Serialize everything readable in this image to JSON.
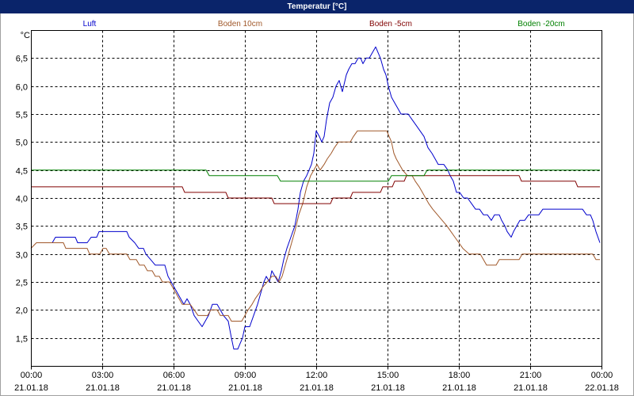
{
  "colors": {
    "title_bar": "#0a246a",
    "title_text": "#ffffff"
  },
  "chart_data": {
    "type": "line",
    "title": "Temperatur [°C]",
    "xlabel": "",
    "ylabel": "°C",
    "ylim": [
      1.0,
      7.0
    ],
    "grid": true,
    "legend": "top",
    "x_ticks": [
      {
        "time": "00:00",
        "date": "21.01.18"
      },
      {
        "time": "03:00",
        "date": "21.01.18"
      },
      {
        "time": "06:00",
        "date": "21.01.18"
      },
      {
        "time": "09:00",
        "date": "21.01.18"
      },
      {
        "time": "12:00",
        "date": "21.01.18"
      },
      {
        "time": "15:00",
        "date": "21.01.18"
      },
      {
        "time": "18:00",
        "date": "21.01.18"
      },
      {
        "time": "21:00",
        "date": "21.01.18"
      },
      {
        "time": "00:00",
        "date": "22.01.18"
      }
    ],
    "y_ticks": [
      {
        "value": 1.5,
        "label": "1,5"
      },
      {
        "value": 2.0,
        "label": "2,0"
      },
      {
        "value": 2.5,
        "label": "2,5"
      },
      {
        "value": 3.0,
        "label": "3,0"
      },
      {
        "value": 3.5,
        "label": "3,5"
      },
      {
        "value": 4.0,
        "label": "4,0"
      },
      {
        "value": 4.5,
        "label": "4,5"
      },
      {
        "value": 5.0,
        "label": "5,0"
      },
      {
        "value": 5.5,
        "label": "5,5"
      },
      {
        "value": 6.0,
        "label": "6,0"
      },
      {
        "value": 6.5,
        "label": "6,5"
      }
    ],
    "series": [
      {
        "name": "Luft",
        "color": "#0000cc",
        "points": [
          [
            "00:54",
            3.2
          ],
          [
            "01:02",
            3.3
          ],
          [
            "01:52",
            3.3
          ],
          [
            "01:58",
            3.2
          ],
          [
            "02:22",
            3.2
          ],
          [
            "02:32",
            3.3
          ],
          [
            "02:46",
            3.3
          ],
          [
            "02:52",
            3.4
          ],
          [
            "04:02",
            3.4
          ],
          [
            "04:08",
            3.3
          ],
          [
            "04:22",
            3.2
          ],
          [
            "04:32",
            3.1
          ],
          [
            "04:44",
            3.1
          ],
          [
            "04:50",
            3.0
          ],
          [
            "05:02",
            2.9
          ],
          [
            "05:14",
            2.8
          ],
          [
            "05:38",
            2.8
          ],
          [
            "05:46",
            2.6
          ],
          [
            "05:54",
            2.5
          ],
          [
            "06:02",
            2.4
          ],
          [
            "06:10",
            2.3
          ],
          [
            "06:18",
            2.2
          ],
          [
            "06:26",
            2.1
          ],
          [
            "06:34",
            2.2
          ],
          [
            "06:42",
            2.1
          ],
          [
            "06:52",
            1.9
          ],
          [
            "07:02",
            1.8
          ],
          [
            "07:12",
            1.7
          ],
          [
            "07:20",
            1.8
          ],
          [
            "07:28",
            1.9
          ],
          [
            "07:38",
            2.1
          ],
          [
            "07:50",
            2.1
          ],
          [
            "07:58",
            2.0
          ],
          [
            "08:06",
            1.9
          ],
          [
            "08:18",
            1.8
          ],
          [
            "08:26",
            1.5
          ],
          [
            "08:32",
            1.3
          ],
          [
            "08:42",
            1.3
          ],
          [
            "08:48",
            1.4
          ],
          [
            "08:54",
            1.5
          ],
          [
            "09:00",
            1.7
          ],
          [
            "09:12",
            1.7
          ],
          [
            "09:22",
            1.9
          ],
          [
            "09:32",
            2.1
          ],
          [
            "09:40",
            2.3
          ],
          [
            "09:48",
            2.5
          ],
          [
            "09:54",
            2.6
          ],
          [
            "10:02",
            2.5
          ],
          [
            "10:08",
            2.7
          ],
          [
            "10:16",
            2.6
          ],
          [
            "10:24",
            2.5
          ],
          [
            "10:32",
            2.7
          ],
          [
            "10:38",
            2.9
          ],
          [
            "10:46",
            3.1
          ],
          [
            "10:56",
            3.3
          ],
          [
            "11:06",
            3.5
          ],
          [
            "11:14",
            3.8
          ],
          [
            "11:20",
            4.1
          ],
          [
            "11:28",
            4.3
          ],
          [
            "11:36",
            4.4
          ],
          [
            "11:48",
            4.6
          ],
          [
            "11:54",
            4.8
          ],
          [
            "12:00",
            5.2
          ],
          [
            "12:08",
            5.1
          ],
          [
            "12:14",
            5.0
          ],
          [
            "12:20",
            5.1
          ],
          [
            "12:26",
            5.4
          ],
          [
            "12:34",
            5.7
          ],
          [
            "12:42",
            5.8
          ],
          [
            "12:50",
            6.0
          ],
          [
            "12:58",
            6.1
          ],
          [
            "13:06",
            5.9
          ],
          [
            "13:16",
            6.2
          ],
          [
            "13:22",
            6.3
          ],
          [
            "13:30",
            6.4
          ],
          [
            "13:38",
            6.4
          ],
          [
            "13:46",
            6.5
          ],
          [
            "13:52",
            6.5
          ],
          [
            "13:58",
            6.4
          ],
          [
            "14:06",
            6.5
          ],
          [
            "14:14",
            6.5
          ],
          [
            "14:22",
            6.6
          ],
          [
            "14:30",
            6.7
          ],
          [
            "14:36",
            6.6
          ],
          [
            "14:42",
            6.5
          ],
          [
            "14:50",
            6.3
          ],
          [
            "14:56",
            6.2
          ],
          [
            "15:02",
            6.0
          ],
          [
            "15:10",
            5.8
          ],
          [
            "15:18",
            5.7
          ],
          [
            "15:26",
            5.6
          ],
          [
            "15:34",
            5.5
          ],
          [
            "15:52",
            5.5
          ],
          [
            "16:02",
            5.4
          ],
          [
            "16:12",
            5.3
          ],
          [
            "16:22",
            5.2
          ],
          [
            "16:32",
            5.1
          ],
          [
            "16:42",
            4.9
          ],
          [
            "16:52",
            4.8
          ],
          [
            "17:00",
            4.7
          ],
          [
            "17:08",
            4.6
          ],
          [
            "17:22",
            4.6
          ],
          [
            "17:32",
            4.5
          ],
          [
            "17:38",
            4.4
          ],
          [
            "17:46",
            4.3
          ],
          [
            "17:54",
            4.1
          ],
          [
            "18:02",
            4.1
          ],
          [
            "18:12",
            4.0
          ],
          [
            "18:22",
            4.0
          ],
          [
            "18:32",
            3.9
          ],
          [
            "18:42",
            3.8
          ],
          [
            "18:52",
            3.8
          ],
          [
            "19:02",
            3.7
          ],
          [
            "19:12",
            3.7
          ],
          [
            "19:22",
            3.6
          ],
          [
            "19:30",
            3.7
          ],
          [
            "19:42",
            3.7
          ],
          [
            "19:48",
            3.6
          ],
          [
            "19:56",
            3.5
          ],
          [
            "20:02",
            3.4
          ],
          [
            "20:12",
            3.3
          ],
          [
            "20:18",
            3.4
          ],
          [
            "20:26",
            3.5
          ],
          [
            "20:34",
            3.6
          ],
          [
            "20:46",
            3.6
          ],
          [
            "20:56",
            3.7
          ],
          [
            "21:22",
            3.7
          ],
          [
            "21:32",
            3.8
          ],
          [
            "23:12",
            3.8
          ],
          [
            "23:22",
            3.7
          ],
          [
            "23:32",
            3.7
          ],
          [
            "23:38",
            3.6
          ],
          [
            "23:46",
            3.4
          ],
          [
            "23:56",
            3.2
          ]
        ]
      },
      {
        "name": "Boden 10cm",
        "color": "#a0582a",
        "points": [
          [
            "00:00",
            3.1
          ],
          [
            "00:14",
            3.2
          ],
          [
            "01:22",
            3.2
          ],
          [
            "01:28",
            3.1
          ],
          [
            "02:22",
            3.1
          ],
          [
            "02:28",
            3.0
          ],
          [
            "02:54",
            3.0
          ],
          [
            "03:02",
            3.1
          ],
          [
            "03:10",
            3.1
          ],
          [
            "03:18",
            3.0
          ],
          [
            "04:02",
            3.0
          ],
          [
            "04:10",
            2.9
          ],
          [
            "04:26",
            2.9
          ],
          [
            "04:34",
            2.8
          ],
          [
            "04:46",
            2.8
          ],
          [
            "04:54",
            2.7
          ],
          [
            "05:06",
            2.7
          ],
          [
            "05:14",
            2.6
          ],
          [
            "05:24",
            2.6
          ],
          [
            "05:32",
            2.5
          ],
          [
            "05:50",
            2.5
          ],
          [
            "05:58",
            2.4
          ],
          [
            "06:06",
            2.3
          ],
          [
            "06:14",
            2.2
          ],
          [
            "06:22",
            2.1
          ],
          [
            "06:42",
            2.1
          ],
          [
            "06:52",
            2.0
          ],
          [
            "07:02",
            1.9
          ],
          [
            "07:26",
            1.9
          ],
          [
            "07:34",
            2.0
          ],
          [
            "07:50",
            2.0
          ],
          [
            "07:58",
            1.9
          ],
          [
            "08:18",
            1.9
          ],
          [
            "08:26",
            1.8
          ],
          [
            "08:52",
            1.8
          ],
          [
            "09:00",
            1.9
          ],
          [
            "09:08",
            2.0
          ],
          [
            "09:18",
            2.1
          ],
          [
            "09:26",
            2.2
          ],
          [
            "09:36",
            2.3
          ],
          [
            "09:44",
            2.4
          ],
          [
            "09:56",
            2.5
          ],
          [
            "10:08",
            2.6
          ],
          [
            "10:18",
            2.6
          ],
          [
            "10:26",
            2.5
          ],
          [
            "10:34",
            2.6
          ],
          [
            "10:42",
            2.8
          ],
          [
            "10:50",
            3.0
          ],
          [
            "10:58",
            3.2
          ],
          [
            "11:06",
            3.4
          ],
          [
            "11:16",
            3.7
          ],
          [
            "11:26",
            3.9
          ],
          [
            "11:36",
            4.2
          ],
          [
            "11:46",
            4.4
          ],
          [
            "11:54",
            4.5
          ],
          [
            "12:02",
            4.6
          ],
          [
            "12:10",
            4.5
          ],
          [
            "12:20",
            4.6
          ],
          [
            "12:28",
            4.7
          ],
          [
            "12:38",
            4.8
          ],
          [
            "12:46",
            4.9
          ],
          [
            "12:56",
            5.0
          ],
          [
            "13:26",
            5.0
          ],
          [
            "13:34",
            5.1
          ],
          [
            "13:44",
            5.2
          ],
          [
            "14:58",
            5.2
          ],
          [
            "15:04",
            5.1
          ],
          [
            "15:10",
            5.0
          ],
          [
            "15:16",
            4.8
          ],
          [
            "15:22",
            4.7
          ],
          [
            "15:30",
            4.6
          ],
          [
            "15:38",
            4.5
          ],
          [
            "15:50",
            4.4
          ],
          [
            "16:02",
            4.4
          ],
          [
            "16:10",
            4.3
          ],
          [
            "16:20",
            4.2
          ],
          [
            "16:28",
            4.1
          ],
          [
            "16:36",
            4.0
          ],
          [
            "16:44",
            3.9
          ],
          [
            "16:54",
            3.8
          ],
          [
            "17:06",
            3.7
          ],
          [
            "17:18",
            3.6
          ],
          [
            "17:30",
            3.5
          ],
          [
            "17:40",
            3.4
          ],
          [
            "17:50",
            3.3
          ],
          [
            "18:00",
            3.2
          ],
          [
            "18:10",
            3.1
          ],
          [
            "18:26",
            3.0
          ],
          [
            "18:54",
            3.0
          ],
          [
            "19:02",
            2.9
          ],
          [
            "19:10",
            2.8
          ],
          [
            "19:34",
            2.8
          ],
          [
            "19:42",
            2.9
          ],
          [
            "20:32",
            2.9
          ],
          [
            "20:40",
            3.0
          ],
          [
            "23:38",
            3.0
          ],
          [
            "23:46",
            2.9
          ],
          [
            "23:56",
            2.9
          ]
        ]
      },
      {
        "name": "Boden -5cm",
        "color": "#800000",
        "points": [
          [
            "00:00",
            4.2
          ],
          [
            "06:22",
            4.2
          ],
          [
            "06:28",
            4.1
          ],
          [
            "08:12",
            4.1
          ],
          [
            "08:18",
            4.0
          ],
          [
            "10:08",
            4.0
          ],
          [
            "10:14",
            3.9
          ],
          [
            "12:36",
            3.9
          ],
          [
            "12:42",
            4.0
          ],
          [
            "13:26",
            4.0
          ],
          [
            "13:32",
            4.1
          ],
          [
            "14:42",
            4.1
          ],
          [
            "14:48",
            4.2
          ],
          [
            "15:12",
            4.2
          ],
          [
            "15:18",
            4.3
          ],
          [
            "15:42",
            4.3
          ],
          [
            "15:48",
            4.4
          ],
          [
            "20:32",
            4.4
          ],
          [
            "20:38",
            4.3
          ],
          [
            "22:54",
            4.3
          ],
          [
            "23:00",
            4.2
          ],
          [
            "23:56",
            4.2
          ]
        ]
      },
      {
        "name": "Boden -20cm",
        "color": "#008000",
        "points": [
          [
            "00:00",
            4.5
          ],
          [
            "07:22",
            4.5
          ],
          [
            "07:30",
            4.4
          ],
          [
            "10:22",
            4.4
          ],
          [
            "10:30",
            4.3
          ],
          [
            "15:02",
            4.3
          ],
          [
            "15:10",
            4.4
          ],
          [
            "16:32",
            4.4
          ],
          [
            "16:40",
            4.5
          ],
          [
            "23:56",
            4.5
          ]
        ]
      }
    ]
  }
}
